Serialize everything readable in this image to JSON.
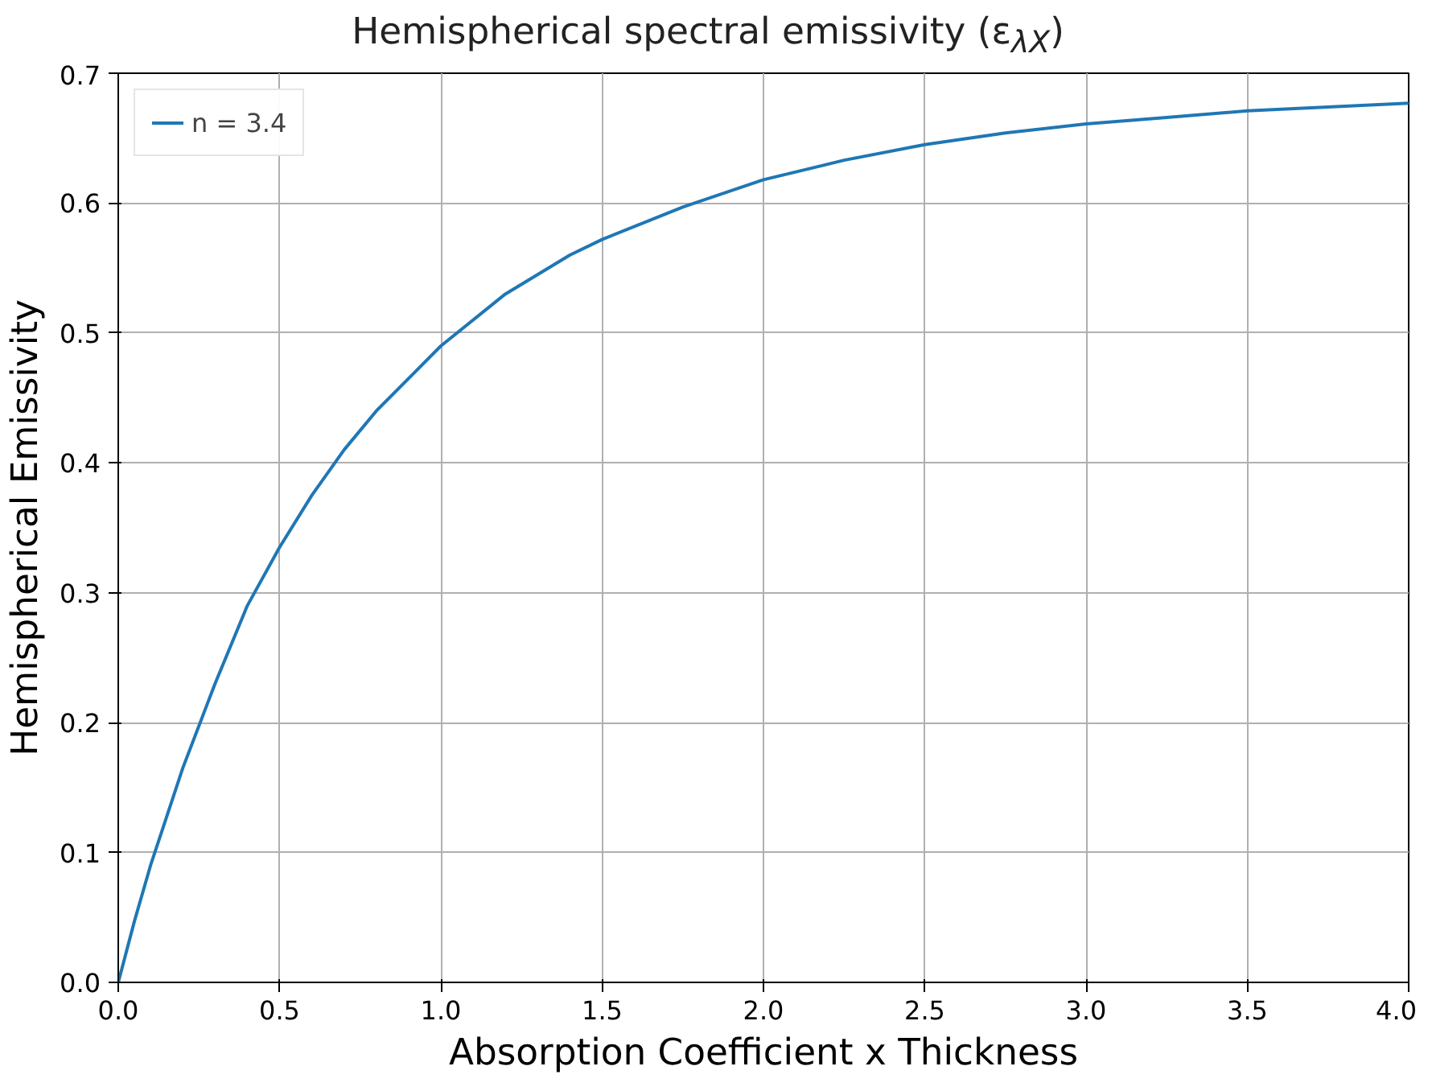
{
  "chart_data": {
    "type": "line",
    "title": "Hemispherical spectral emissivity (ε$_{λX}$)",
    "xlabel": "Absorption Coefficient x Thickness",
    "ylabel": "Hemispherical Emissivity",
    "x": [
      0,
      0.05,
      0.1,
      0.2,
      0.3,
      0.4,
      0.5,
      0.6,
      0.7,
      0.8,
      0.9,
      1.0,
      1.2,
      1.4,
      1.5,
      1.75,
      2.0,
      2.25,
      2.5,
      2.75,
      3.0,
      3.25,
      3.5,
      3.75,
      4.0
    ],
    "series": [
      {
        "name": "n = 3.4",
        "color": "#1f77b4",
        "values": [
          0,
          0.047,
          0.09,
          0.165,
          0.23,
          0.29,
          0.335,
          0.375,
          0.41,
          0.44,
          0.465,
          0.49,
          0.53,
          0.56,
          0.572,
          0.597,
          0.618,
          0.633,
          0.645,
          0.654,
          0.661,
          0.666,
          0.671,
          0.674,
          0.677
        ]
      }
    ],
    "xlim": [
      0,
      4
    ],
    "ylim": [
      0,
      0.7
    ],
    "xticks": [
      {
        "value": 0,
        "label": "0.0"
      },
      0.5,
      {
        "value": 1,
        "label": "1.0"
      },
      1.5,
      {
        "value": 2,
        "label": "2.0"
      },
      2.5,
      {
        "value": 3,
        "label": "3.0"
      },
      3.5,
      {
        "value": 4,
        "label": "4.0"
      }
    ],
    "yticks": [
      {
        "value": 0,
        "label": "0.0"
      },
      0.1,
      0.2,
      0.3,
      0.4,
      0.5,
      0.6,
      0.7
    ],
    "grid": true,
    "legend": "top left",
    "line_style": "solid",
    "marker": "none"
  }
}
